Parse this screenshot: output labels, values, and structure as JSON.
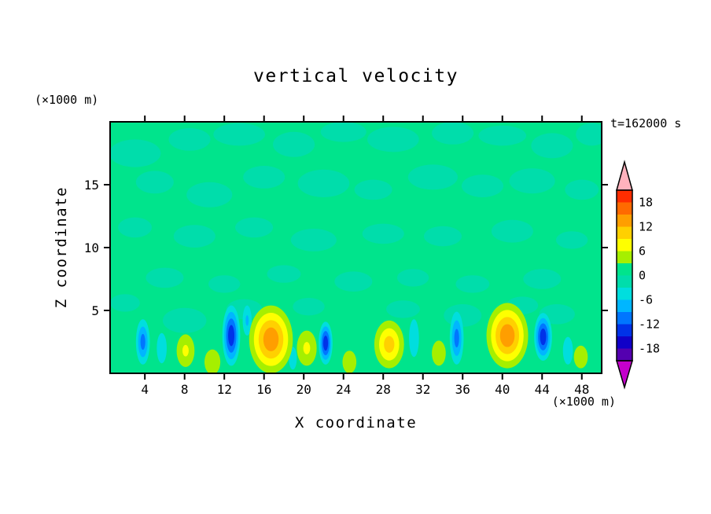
{
  "title": "vertical velocity",
  "timestamp_label": "t=162000 s",
  "plot": {
    "x_axis": {
      "label": "X coordinate",
      "unit": "(×1000 m)",
      "ticks": [
        "4",
        "8",
        "12",
        "16",
        "20",
        "24",
        "28",
        "32",
        "36",
        "40",
        "44",
        "48"
      ],
      "tick_values": [
        4,
        8,
        12,
        16,
        20,
        24,
        28,
        32,
        36,
        40,
        44,
        48
      ],
      "range": [
        0.5,
        50
      ]
    },
    "y_axis": {
      "label": "Z coordinate",
      "unit": "(×1000 m)",
      "ticks": [
        "5",
        "10",
        "15"
      ],
      "tick_values": [
        5,
        10,
        15
      ],
      "range": [
        0,
        20
      ]
    }
  },
  "colorbar": {
    "labels": [
      "18",
      "12",
      "6",
      "0",
      "-6",
      "-12",
      "-18"
    ],
    "label_values": [
      18,
      12,
      6,
      0,
      -6,
      -12,
      -18
    ],
    "level_min": -21,
    "level_max": 21,
    "interval": 3,
    "band_colors_top_to_bottom": [
      "#ff2d00",
      "#ff6a00",
      "#ff9e00",
      "#ffd000",
      "#feff00",
      "#a6ef00",
      "#00e48c",
      "#00ddab",
      "#00dede",
      "#00b6ff",
      "#0076ff",
      "#0032e8",
      "#1000c8",
      "#5400b0"
    ],
    "arrow_top_color": "#ffb2bd",
    "arrow_bottom_color": "#c400cc"
  },
  "chart_data": {
    "type": "heatmap",
    "title": "vertical velocity",
    "xlabel": "X coordinate (×1000 m)",
    "ylabel": "Z coordinate (×1000 m)",
    "time_label": "t=162000 s",
    "x_range": [
      0.5,
      50
    ],
    "z_range": [
      0,
      20
    ],
    "contour_interval": 3,
    "value_range": [
      -21,
      21
    ],
    "background_value_band": [
      0,
      3
    ],
    "updrafts": [
      {
        "x": 16.7,
        "z": 2.7,
        "rx": 2.2,
        "ry": 2.7,
        "peak": 13
      },
      {
        "x": 40.5,
        "z": 3.0,
        "rx": 2.1,
        "ry": 2.6,
        "peak": 13
      },
      {
        "x": 28.6,
        "z": 2.3,
        "rx": 1.5,
        "ry": 1.9,
        "peak": 10
      },
      {
        "x": 20.3,
        "z": 2.0,
        "rx": 1.0,
        "ry": 1.4,
        "peak": 7
      },
      {
        "x": 8.1,
        "z": 1.8,
        "rx": 0.9,
        "ry": 1.3,
        "peak": 7
      },
      {
        "x": 33.6,
        "z": 1.6,
        "rx": 0.7,
        "ry": 1.0,
        "peak": 4
      },
      {
        "x": 10.8,
        "z": 0.9,
        "rx": 0.8,
        "ry": 1.0,
        "peak": 4
      },
      {
        "x": 24.6,
        "z": 0.9,
        "rx": 0.7,
        "ry": 0.9,
        "peak": 4
      },
      {
        "x": 47.9,
        "z": 1.3,
        "rx": 0.7,
        "ry": 0.9,
        "peak": 4
      }
    ],
    "downdrafts": [
      {
        "x": 3.8,
        "z": 2.5,
        "rx": 0.7,
        "ry": 1.8,
        "peak": -10
      },
      {
        "x": 12.7,
        "z": 3.0,
        "rx": 0.9,
        "ry": 2.4,
        "peak": -13
      },
      {
        "x": 22.2,
        "z": 2.4,
        "rx": 0.7,
        "ry": 1.7,
        "peak": -12
      },
      {
        "x": 35.4,
        "z": 2.8,
        "rx": 0.7,
        "ry": 2.1,
        "peak": -9
      },
      {
        "x": 44.1,
        "z": 2.9,
        "rx": 0.9,
        "ry": 1.9,
        "peak": -12
      },
      {
        "x": 31.1,
        "z": 2.8,
        "rx": 0.5,
        "ry": 1.5,
        "peak": -5
      },
      {
        "x": 46.6,
        "z": 1.8,
        "rx": 0.5,
        "ry": 1.1,
        "peak": -5
      },
      {
        "x": 5.7,
        "z": 2.0,
        "rx": 0.5,
        "ry": 1.2,
        "peak": -5
      },
      {
        "x": 14.3,
        "z": 4.2,
        "rx": 0.45,
        "ry": 1.2,
        "peak": -6
      },
      {
        "x": 18.9,
        "z": 1.2,
        "rx": 0.4,
        "ry": 0.9,
        "peak": -5
      }
    ],
    "weak_negative_patches": [
      [
        3,
        17.5,
        2.6,
        1.1
      ],
      [
        8.5,
        18.6,
        2.1,
        0.9
      ],
      [
        13.5,
        19,
        2.6,
        0.9
      ],
      [
        19,
        18.2,
        2.1,
        1.0
      ],
      [
        24,
        19.2,
        2.3,
        0.8
      ],
      [
        29,
        18.6,
        2.6,
        1.0
      ],
      [
        35,
        19.1,
        2.1,
        0.9
      ],
      [
        40,
        18.9,
        2.4,
        0.8
      ],
      [
        45,
        18.1,
        2.1,
        1.0
      ],
      [
        49,
        19,
        1.6,
        0.9
      ],
      [
        5,
        15.2,
        1.9,
        0.9
      ],
      [
        10.5,
        14.2,
        2.3,
        1.0
      ],
      [
        16,
        15.6,
        2.1,
        0.9
      ],
      [
        22,
        15.1,
        2.6,
        1.1
      ],
      [
        27,
        14.6,
        1.9,
        0.8
      ],
      [
        33,
        15.6,
        2.5,
        1.0
      ],
      [
        38,
        14.9,
        2.1,
        0.9
      ],
      [
        43,
        15.3,
        2.3,
        1.0
      ],
      [
        48,
        14.6,
        1.7,
        0.8
      ],
      [
        3,
        11.6,
        1.7,
        0.8
      ],
      [
        9,
        10.9,
        2.1,
        0.9
      ],
      [
        15,
        11.6,
        1.9,
        0.8
      ],
      [
        21,
        10.6,
        2.3,
        0.9
      ],
      [
        28,
        11.1,
        2.1,
        0.8
      ],
      [
        34,
        10.9,
        1.9,
        0.8
      ],
      [
        41,
        11.3,
        2.1,
        0.9
      ],
      [
        47,
        10.6,
        1.6,
        0.7
      ],
      [
        6,
        7.6,
        1.9,
        0.8
      ],
      [
        12,
        7.1,
        1.6,
        0.7
      ],
      [
        18,
        7.9,
        1.7,
        0.7
      ],
      [
        25,
        7.3,
        1.9,
        0.8
      ],
      [
        31,
        7.6,
        1.6,
        0.7
      ],
      [
        37,
        7.1,
        1.7,
        0.7
      ],
      [
        44,
        7.5,
        1.9,
        0.8
      ],
      [
        2,
        5.6,
        1.5,
        0.7
      ],
      [
        8,
        4.2,
        2.2,
        1.0
      ],
      [
        14,
        5.1,
        1.8,
        0.8
      ],
      [
        20.5,
        5.3,
        1.6,
        0.7
      ],
      [
        30,
        5.1,
        1.7,
        0.7
      ],
      [
        36,
        4.6,
        1.9,
        0.9
      ],
      [
        42,
        5.4,
        1.6,
        0.7
      ],
      [
        45.5,
        4.7,
        1.8,
        0.8
      ]
    ]
  }
}
